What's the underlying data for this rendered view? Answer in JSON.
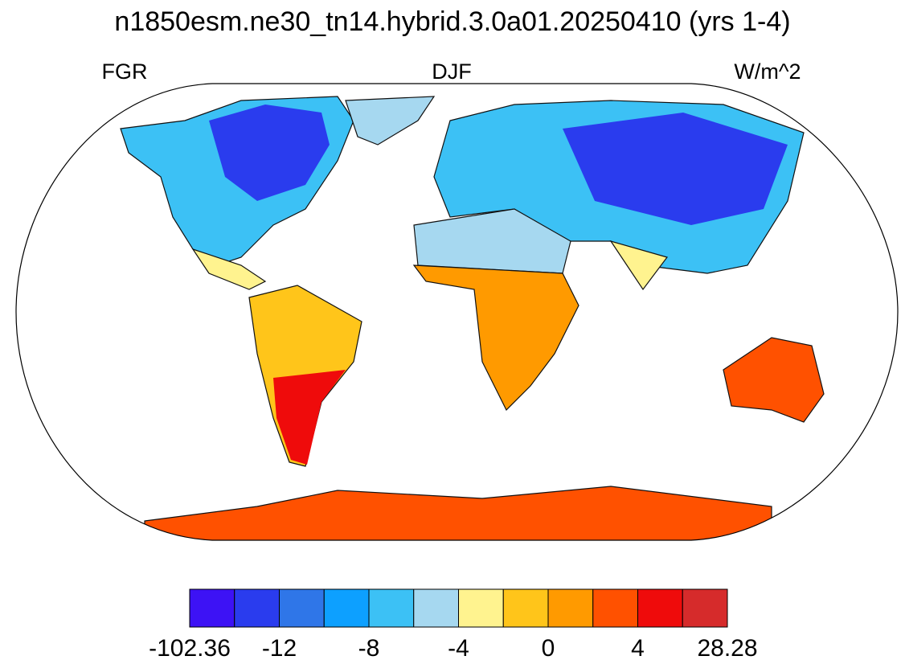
{
  "header": {
    "title": "n1850esm.ne30_tn14.hybrid.3.0a01.20250410 (yrs 1-4)"
  },
  "map": {
    "variable": "FGR",
    "season": "DJF",
    "units": "W/m^2"
  },
  "colorbar": {
    "colors": [
      "#3d12f5",
      "#2a3cee",
      "#2f76e8",
      "#0da0ff",
      "#3cc1f5",
      "#a6d8f0",
      "#fff38f",
      "#ffc51a",
      "#ff9a00",
      "#ff5100",
      "#ef0b0b",
      "#d62b2b"
    ],
    "ticks": [
      -102.36,
      -12,
      -8,
      -4,
      0,
      4,
      28.28
    ]
  }
}
